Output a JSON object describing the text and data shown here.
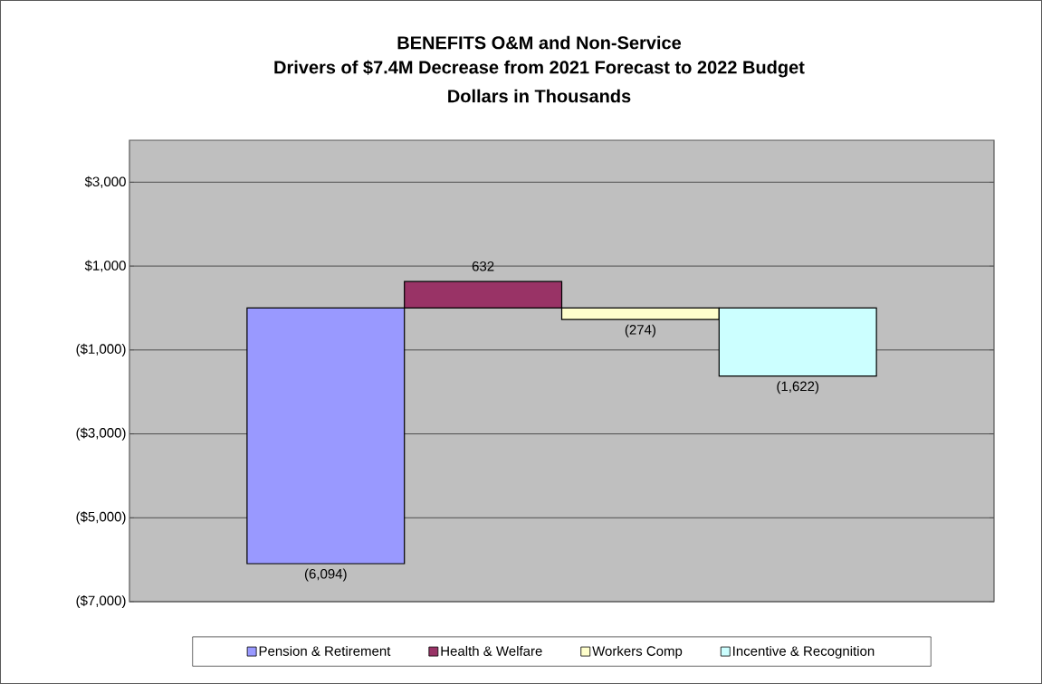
{
  "chart_data": {
    "type": "bar",
    "title": "BENEFITS O&M and Non-Service",
    "subtitle": "Drivers of $7.4M Decrease from 2021 Forecast to 2022 Budget",
    "annotations": [
      "Dollars in Thousands"
    ],
    "categories": [
      null
    ],
    "series": [
      {
        "name": "Pension & Retirement",
        "color": "#9999ff",
        "values": [
          -6094
        ],
        "value_labels": [
          "(6,094)"
        ]
      },
      {
        "name": "Health & Welfare",
        "color": "#993366",
        "values": [
          632
        ],
        "value_labels": [
          "632"
        ]
      },
      {
        "name": "Workers Comp",
        "color": "#ffffcc",
        "values": [
          -274
        ],
        "value_labels": [
          "(274)"
        ]
      },
      {
        "name": "Incentive & Recognition",
        "color": "#ccffff",
        "values": [
          -1622
        ],
        "value_labels": [
          "(1,622)"
        ]
      }
    ],
    "ylim": [
      -7000,
      4000
    ],
    "yticks": [
      {
        "value": -7000,
        "label": "($7,000)"
      },
      {
        "value": -5000,
        "label": "($5,000)"
      },
      {
        "value": -3000,
        "label": "($3,000)"
      },
      {
        "value": -1000,
        "label": "($1,000)"
      },
      {
        "value": 1000,
        "label": "$1,000"
      },
      {
        "value": 3000,
        "label": "$3,000"
      }
    ],
    "grid": "y",
    "legend": "bottom",
    "tick_labels": "y"
  }
}
